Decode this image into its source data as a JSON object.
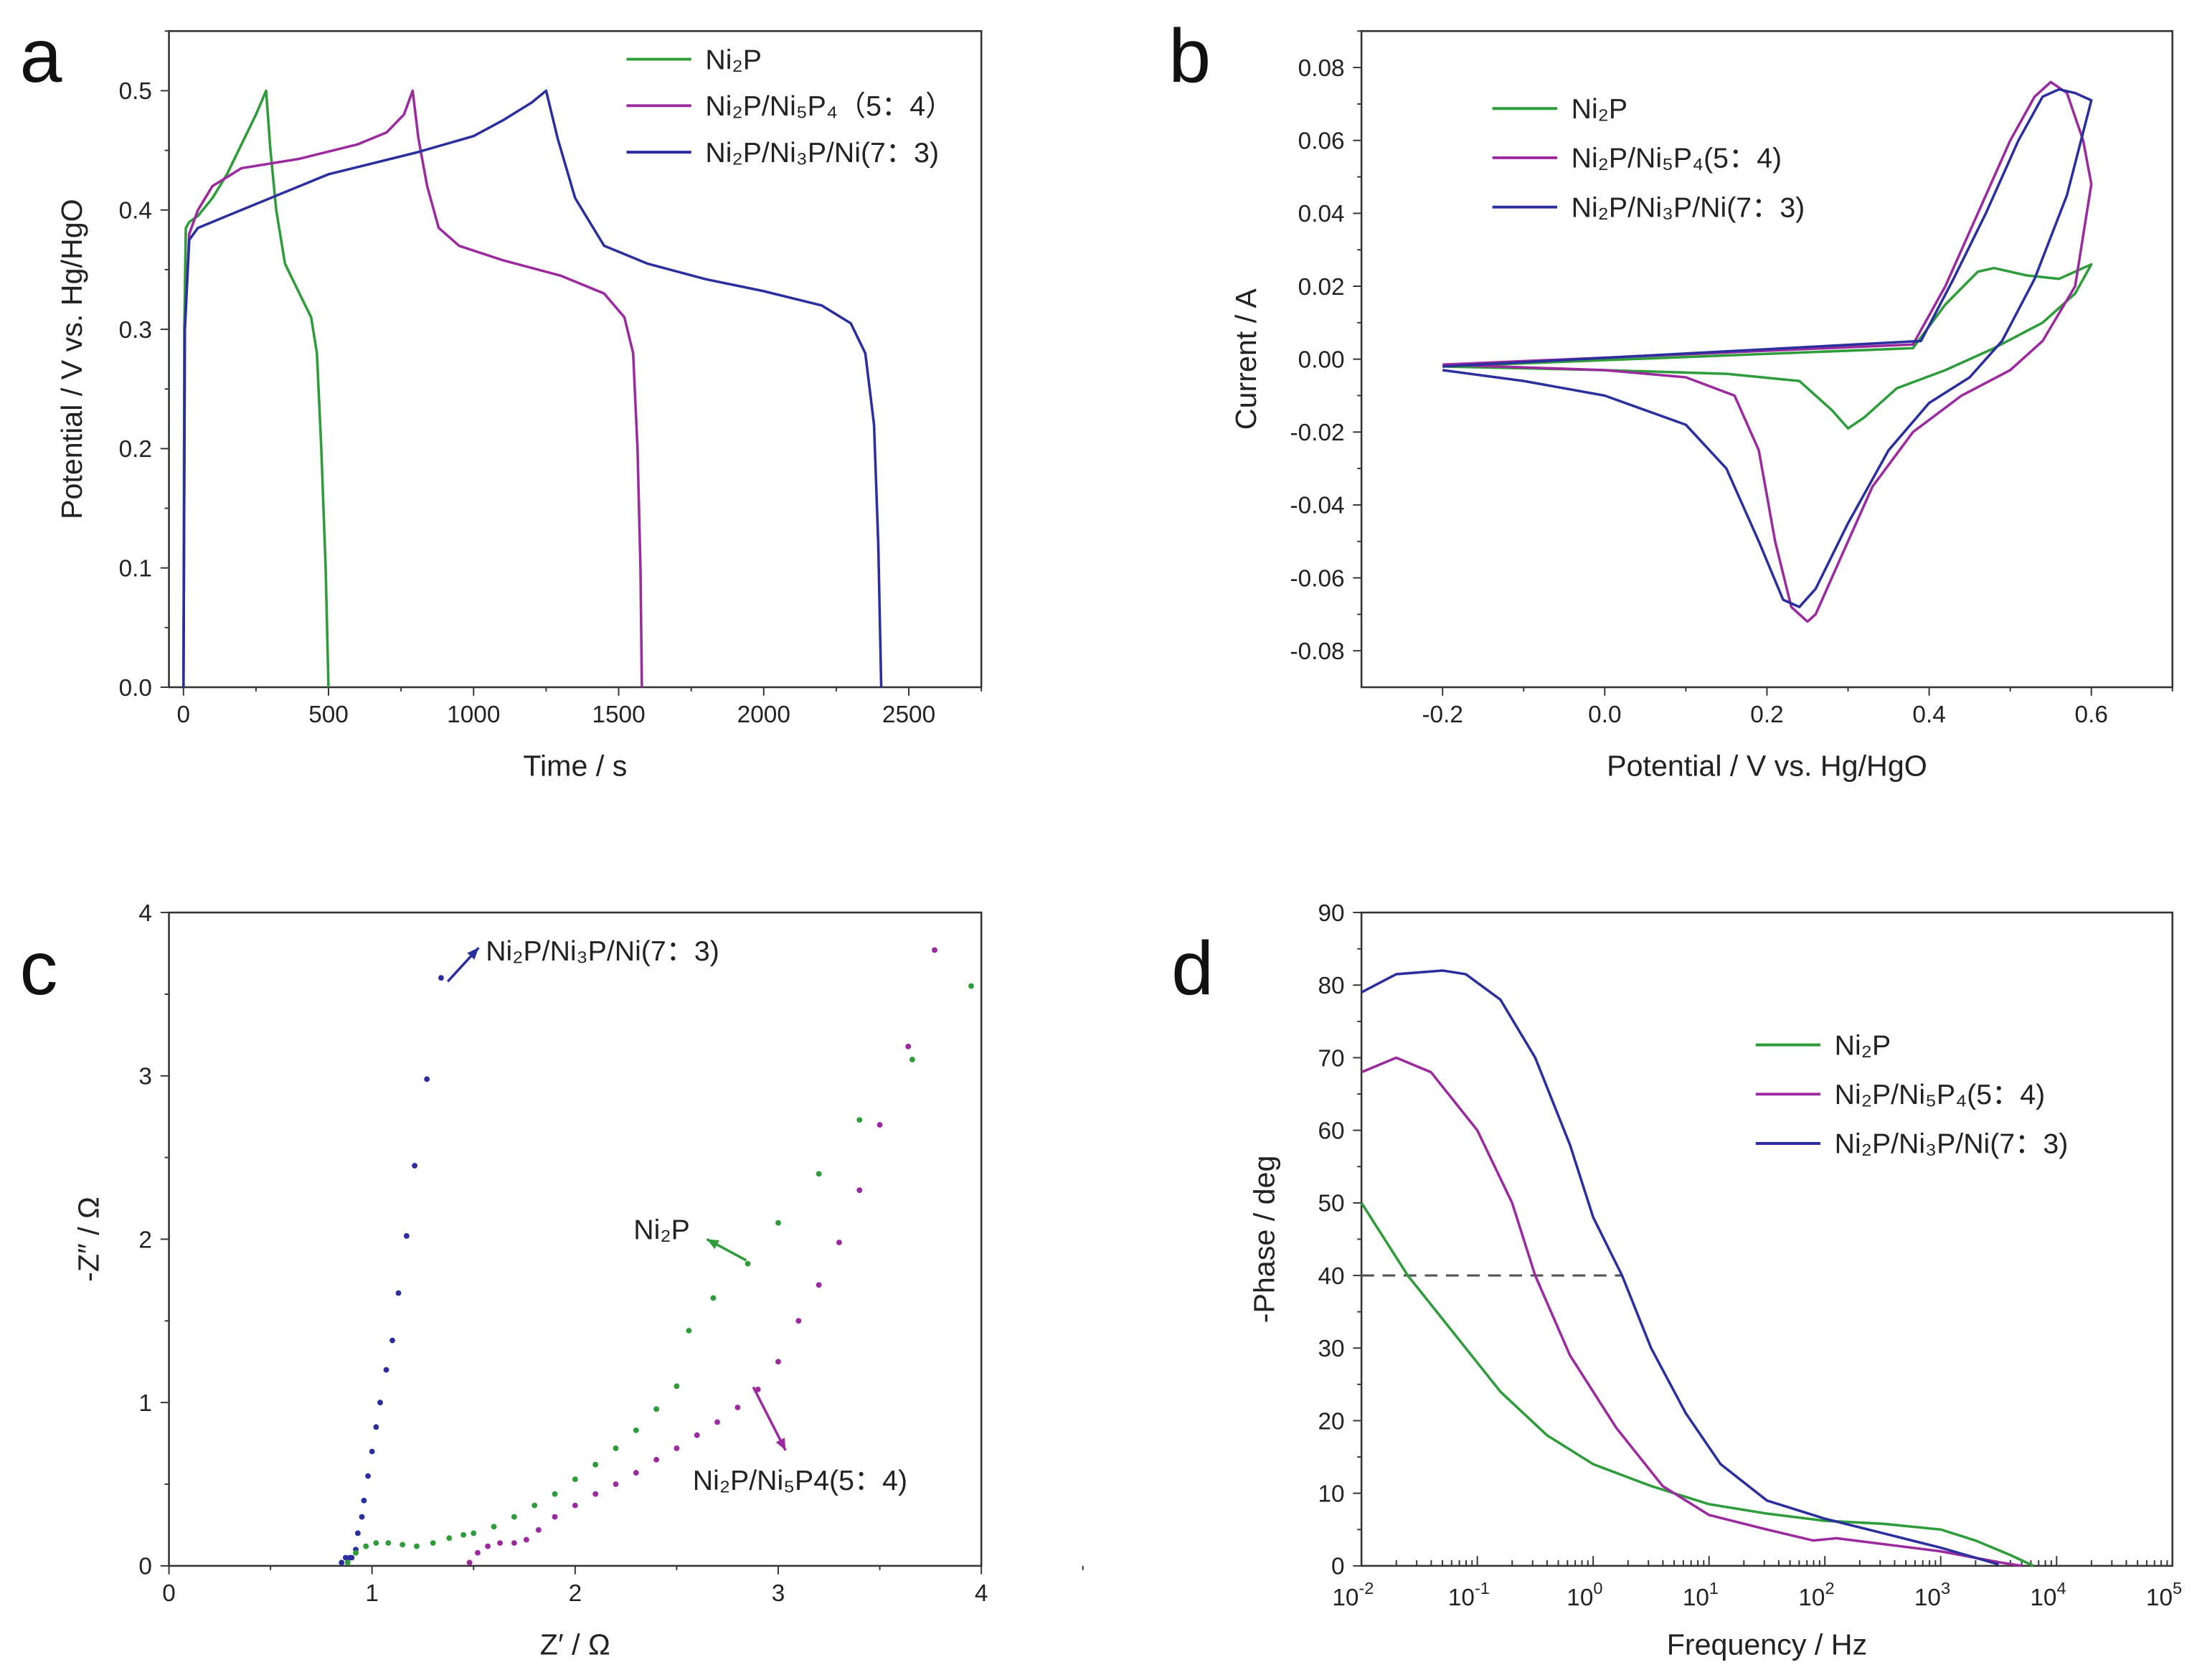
{
  "colors": {
    "green": "#2e9c3a",
    "purple": "#9b2a9e",
    "blue": "#2b2f9e"
  },
  "chart_data": [
    {
      "panel": "a",
      "type": "line",
      "xlabel": "Time / s",
      "ylabel": "Potential / V vs. Hg/HgO",
      "xlim": [
        -50,
        2750
      ],
      "ylim": [
        0,
        0.55
      ],
      "xticks": [
        0,
        500,
        1000,
        1500,
        2000,
        2500
      ],
      "yticks": [
        0.0,
        0.1,
        0.2,
        0.3,
        0.4,
        0.5
      ],
      "ytick_labels": [
        "0.0",
        "0.1",
        "0.2",
        "0.3",
        "0.4",
        "0.5"
      ],
      "legend": "top-right",
      "series": [
        {
          "name": "Ni₂P",
          "color": "green",
          "x": [
            0,
            3,
            8,
            20,
            50,
            100,
            150,
            200,
            250,
            285,
            300,
            320,
            350,
            400,
            440,
            460,
            475,
            490,
            500
          ],
          "y": [
            0,
            0.3,
            0.385,
            0.39,
            0.395,
            0.41,
            0.43,
            0.455,
            0.48,
            0.5,
            0.45,
            0.4,
            0.355,
            0.33,
            0.31,
            0.28,
            0.2,
            0.1,
            0
          ]
        },
        {
          "name": "Ni₂P/Ni₅P₄（5：4）",
          "color": "purple",
          "x": [
            0,
            5,
            20,
            50,
            100,
            200,
            400,
            600,
            700,
            760,
            790,
            810,
            840,
            880,
            950,
            1100,
            1300,
            1450,
            1520,
            1550,
            1565,
            1575,
            1580
          ],
          "y": [
            0,
            0.3,
            0.38,
            0.4,
            0.42,
            0.435,
            0.443,
            0.455,
            0.465,
            0.48,
            0.5,
            0.46,
            0.42,
            0.385,
            0.37,
            0.358,
            0.345,
            0.33,
            0.31,
            0.28,
            0.2,
            0.1,
            0
          ]
        },
        {
          "name": "Ni₂P/Ni₃P/Ni(7：3)",
          "color": "blue",
          "x": [
            0,
            5,
            20,
            50,
            150,
            300,
            500,
            800,
            1000,
            1100,
            1200,
            1250,
            1290,
            1350,
            1450,
            1600,
            1800,
            2000,
            2200,
            2300,
            2350,
            2380,
            2395,
            2405
          ],
          "y": [
            0,
            0.3,
            0.375,
            0.385,
            0.395,
            0.41,
            0.43,
            0.448,
            0.462,
            0.475,
            0.49,
            0.5,
            0.46,
            0.41,
            0.37,
            0.355,
            0.342,
            0.332,
            0.32,
            0.305,
            0.28,
            0.22,
            0.12,
            0
          ]
        }
      ]
    },
    {
      "panel": "b",
      "type": "line",
      "xlabel": "Potential / V vs. Hg/HgO",
      "ylabel": "Current / A",
      "xlim": [
        -0.3,
        0.7
      ],
      "ylim": [
        -0.09,
        0.09
      ],
      "xticks": [
        -0.2,
        0,
        0.2,
        0.4,
        0.6
      ],
      "xtick_labels": [
        "-0.2",
        "0.0",
        "0.2",
        "0.4",
        "0.6"
      ],
      "yticks": [
        -0.08,
        -0.06,
        -0.04,
        -0.02,
        0,
        0.02,
        0.04,
        0.06,
        0.08
      ],
      "ytick_labels": [
        "-0.08",
        "-0.06",
        "-0.04",
        "-0.02",
        "0.00",
        "0.02",
        "0.04",
        "0.06",
        "0.08"
      ],
      "legend": "top-left",
      "series": [
        {
          "name": "Ni₂P",
          "color": "green",
          "x": [
            -0.2,
            0.38,
            0.42,
            0.46,
            0.48,
            0.52,
            0.56,
            0.6,
            0.58,
            0.54,
            0.48,
            0.42,
            0.36,
            0.32,
            0.3,
            0.28,
            0.24,
            0.15,
            0,
            -0.2
          ],
          "y": [
            -0.002,
            0.003,
            0.015,
            0.024,
            0.025,
            0.023,
            0.022,
            0.026,
            0.018,
            0.01,
            0.003,
            -0.003,
            -0.008,
            -0.016,
            -0.019,
            -0.014,
            -0.006,
            -0.004,
            -0.003,
            -0.002
          ]
        },
        {
          "name": "Ni₂P/Ni₅P₄(5：4)",
          "color": "purple",
          "x": [
            -0.2,
            0.38,
            0.42,
            0.46,
            0.5,
            0.53,
            0.55,
            0.57,
            0.59,
            0.6,
            0.58,
            0.54,
            0.5,
            0.44,
            0.38,
            0.33,
            0.29,
            0.26,
            0.25,
            0.23,
            0.21,
            0.19,
            0.16,
            0.1,
            0,
            -0.2
          ],
          "y": [
            -0.0015,
            0.004,
            0.02,
            0.04,
            0.06,
            0.072,
            0.076,
            0.073,
            0.06,
            0.048,
            0.02,
            0.005,
            -0.003,
            -0.01,
            -0.02,
            -0.035,
            -0.055,
            -0.07,
            -0.072,
            -0.068,
            -0.05,
            -0.025,
            -0.01,
            -0.005,
            -0.003,
            -0.0015
          ]
        },
        {
          "name": "Ni₂P/Ni₃P/Ni(7：3)",
          "color": "blue",
          "x": [
            -0.2,
            0.39,
            0.43,
            0.47,
            0.51,
            0.54,
            0.56,
            0.58,
            0.6,
            0.57,
            0.53,
            0.49,
            0.45,
            0.4,
            0.35,
            0.3,
            0.26,
            0.24,
            0.22,
            0.19,
            0.15,
            0.1,
            0,
            -0.1,
            -0.2
          ],
          "y": [
            -0.002,
            0.005,
            0.022,
            0.04,
            0.06,
            0.072,
            0.074,
            0.073,
            0.071,
            0.045,
            0.022,
            0.005,
            -0.005,
            -0.012,
            -0.025,
            -0.045,
            -0.063,
            -0.068,
            -0.066,
            -0.05,
            -0.03,
            -0.018,
            -0.01,
            -0.006,
            -0.003
          ]
        }
      ]
    },
    {
      "panel": "c",
      "type": "scatter",
      "xlabel": "Z′ / Ω",
      "ylabel": "-Z″ / Ω",
      "xlim": [
        0,
        4
      ],
      "ylim": [
        0,
        4
      ],
      "xticks": [
        0,
        1,
        2,
        3,
        4
      ],
      "yticks": [
        0,
        1,
        2,
        3,
        4
      ],
      "annotations": [
        "Ni₂P/Ni₃P/Ni(7：3)",
        "Ni₂P",
        "Ni₂P/Ni₅P4(5：4)"
      ],
      "series": [
        {
          "name": "Ni₂P/Ni₃P/Ni(7：3)",
          "color": "blue",
          "x": [
            0.85,
            0.87,
            0.89,
            0.9,
            0.92,
            0.93,
            0.95,
            0.96,
            0.98,
            1.0,
            1.02,
            1.04,
            1.07,
            1.1,
            1.13,
            1.17,
            1.21,
            1.27,
            1.34
          ],
          "y": [
            0.02,
            0.05,
            0.05,
            0.05,
            0.1,
            0.2,
            0.3,
            0.4,
            0.55,
            0.7,
            0.85,
            1.0,
            1.2,
            1.38,
            1.67,
            2.02,
            2.45,
            2.98,
            3.6
          ]
        },
        {
          "name": "Ni₂P",
          "color": "green",
          "x": [
            0.88,
            0.92,
            0.97,
            1.02,
            1.08,
            1.15,
            1.22,
            1.3,
            1.38,
            1.45,
            1.5,
            1.6,
            1.7,
            1.8,
            1.9,
            2.0,
            2.1,
            2.2,
            2.3,
            2.4,
            2.5,
            2.56,
            2.68,
            2.85,
            3.0,
            3.2,
            3.4,
            3.66,
            3.95
          ],
          "y": [
            0.02,
            0.08,
            0.12,
            0.14,
            0.14,
            0.13,
            0.12,
            0.14,
            0.17,
            0.19,
            0.2,
            0.24,
            0.3,
            0.37,
            0.44,
            0.53,
            0.62,
            0.72,
            0.83,
            0.96,
            1.1,
            1.44,
            1.64,
            1.85,
            2.1,
            2.4,
            2.73,
            3.1,
            3.55
          ]
        },
        {
          "name": "Ni₂P/Ni₅P4(5：4)",
          "color": "purple",
          "x": [
            1.48,
            1.52,
            1.57,
            1.63,
            1.7,
            1.76,
            1.82,
            1.9,
            2.0,
            2.1,
            2.2,
            2.3,
            2.4,
            2.5,
            2.6,
            2.7,
            2.8,
            2.9,
            3.0,
            3.1,
            3.2,
            3.3,
            3.4,
            3.5,
            3.64,
            3.77
          ],
          "y": [
            0.02,
            0.08,
            0.12,
            0.14,
            0.14,
            0.16,
            0.22,
            0.3,
            0.37,
            0.44,
            0.5,
            0.57,
            0.65,
            0.72,
            0.8,
            0.88,
            0.97,
            1.08,
            1.25,
            1.5,
            1.72,
            1.98,
            2.3,
            2.7,
            3.18,
            3.77
          ]
        }
      ]
    },
    {
      "panel": "d",
      "type": "line",
      "xscale": "log",
      "xlabel": "Frequency / Hz",
      "ylabel": "-Phase / deg",
      "xlim_log10": [
        -2,
        5
      ],
      "ylim": [
        0,
        90
      ],
      "xtick_exponents": [
        "-2",
        "-1",
        "0",
        "1",
        "2",
        "3",
        "4",
        "5"
      ],
      "xtick_base": "10",
      "yticks": [
        0,
        10,
        20,
        30,
        40,
        50,
        60,
        70,
        80,
        90
      ],
      "legend": "right",
      "reference_line_deg": 40,
      "series": [
        {
          "name": "Ni₂P",
          "color": "green",
          "log10x": [
            -2,
            -1.6,
            -1.2,
            -0.8,
            -0.4,
            0,
            0.5,
            1,
            1.5,
            2,
            2.5,
            3,
            3.3,
            3.6,
            3.8
          ],
          "y": [
            50,
            40,
            32,
            24,
            18,
            14,
            11,
            8.5,
            7.2,
            6.2,
            5.8,
            5,
            3.5,
            1.5,
            0
          ]
        },
        {
          "name": "Ni₂P/Ni₅P₄(5：4)",
          "color": "purple",
          "log10x": [
            -2,
            -1.7,
            -1.4,
            -1,
            -0.7,
            -0.5,
            -0.2,
            0.2,
            0.6,
            1,
            1.5,
            1.9,
            2.1,
            2.5,
            3,
            3.5,
            3.7
          ],
          "y": [
            68,
            70,
            68,
            60,
            50,
            40,
            29,
            19,
            11,
            7,
            5,
            3.5,
            3.8,
            3,
            2,
            0.5,
            0
          ]
        },
        {
          "name": "Ni₂P/Ni₃P/Ni(7：3)",
          "color": "blue",
          "log10x": [
            -2,
            -1.7,
            -1.3,
            -1.1,
            -0.8,
            -0.5,
            -0.2,
            0,
            0.25,
            0.5,
            0.8,
            1.1,
            1.5,
            2,
            2.5,
            3,
            3.5
          ],
          "y": [
            79,
            81.5,
            82,
            81.5,
            78,
            70,
            58,
            48,
            40,
            30,
            21,
            14,
            9,
            6.5,
            4.5,
            2.5,
            0.2
          ]
        }
      ]
    }
  ],
  "panel_letters": [
    "a",
    "b",
    "c",
    "d"
  ]
}
